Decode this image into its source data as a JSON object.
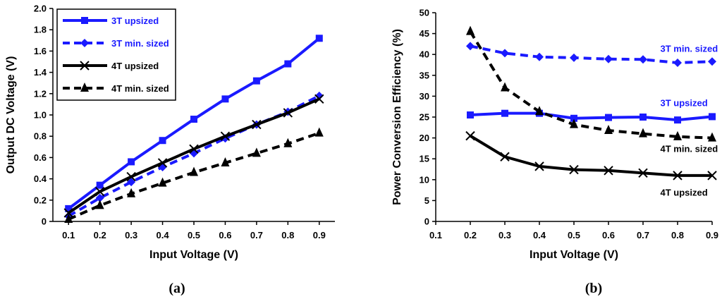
{
  "chart_data": [
    {
      "type": "line",
      "id": "a",
      "subtitle": "(a)",
      "xlabel": "Input Voltage (V)",
      "ylabel": "Output DC  Voltage (V)",
      "xticks": [
        "0.1",
        "0.2",
        "0.3",
        "0.4",
        "0.5",
        "0.6",
        "0.7",
        "0.8",
        "0.9"
      ],
      "yticks": [
        "0",
        "0.2",
        "0.4",
        "0.6",
        "0.8",
        "1.0",
        "1.2",
        "1.4",
        "1.6",
        "1.8",
        "2.0"
      ],
      "xlim": [
        0.05,
        0.95
      ],
      "ylim": [
        0,
        2.0
      ],
      "legend_position": "top-left",
      "x": [
        0.1,
        0.2,
        0.3,
        0.4,
        0.5,
        0.6,
        0.7,
        0.8,
        0.9
      ],
      "series": [
        {
          "name": "3T upsized",
          "color": "#1a1aff",
          "dash": false,
          "marker": "square",
          "values": [
            0.12,
            0.34,
            0.56,
            0.76,
            0.96,
            1.15,
            1.32,
            1.48,
            1.72
          ]
        },
        {
          "name": "3T min. sized",
          "color": "#1a1aff",
          "dash": true,
          "marker": "diamond",
          "values": [
            0.05,
            0.22,
            0.37,
            0.51,
            0.64,
            0.78,
            0.91,
            1.03,
            1.18
          ]
        },
        {
          "name": "4T upsized",
          "color": "#000000",
          "dash": false,
          "marker": "x",
          "values": [
            0.08,
            0.28,
            0.42,
            0.55,
            0.68,
            0.8,
            0.91,
            1.02,
            1.15
          ]
        },
        {
          "name": "4T min. sized",
          "color": "#000000",
          "dash": true,
          "marker": "triangle",
          "values": [
            0.02,
            0.15,
            0.26,
            0.36,
            0.46,
            0.55,
            0.64,
            0.73,
            0.83
          ]
        }
      ]
    },
    {
      "type": "line",
      "id": "b",
      "subtitle": "(b)",
      "xlabel": "Input Voltage (V)",
      "ylabel": "Power Conversion Efficiency (%)",
      "xticks": [
        "0.1",
        "0.2",
        "0.3",
        "0.4",
        "0.5",
        "0.6",
        "0.7",
        "0.8",
        "0.9"
      ],
      "yticks": [
        "0",
        "5",
        "10",
        "15",
        "20",
        "25",
        "30",
        "35",
        "40",
        "45",
        "50"
      ],
      "xlim": [
        0.1,
        0.9
      ],
      "ylim": [
        0,
        50
      ],
      "x": [
        0.2,
        0.3,
        0.4,
        0.5,
        0.6,
        0.7,
        0.8,
        0.9
      ],
      "series": [
        {
          "name": "3T min. sized",
          "color": "#1a1aff",
          "dash": true,
          "marker": "diamond",
          "values": [
            42.0,
            40.3,
            39.4,
            39.2,
            38.9,
            38.8,
            38.0,
            38.3
          ]
        },
        {
          "name": "3T upsized",
          "color": "#1a1aff",
          "dash": false,
          "marker": "square",
          "values": [
            25.5,
            25.9,
            25.9,
            24.7,
            24.9,
            25.0,
            24.3,
            25.1
          ]
        },
        {
          "name": "4T min. sized",
          "color": "#000000",
          "dash": true,
          "marker": "triangle",
          "values": [
            45.5,
            32.0,
            26.3,
            23.2,
            21.8,
            21.0,
            20.3,
            20.0
          ]
        },
        {
          "name": "4T upsized",
          "color": "#000000",
          "dash": false,
          "marker": "x",
          "values": [
            20.5,
            15.5,
            13.2,
            12.4,
            12.2,
            11.6,
            11.0,
            11.0
          ]
        }
      ],
      "annotations": [
        {
          "text": "3T min. sized",
          "color": "#1a1aff",
          "at": [
            0.75,
            41.5
          ]
        },
        {
          "text": "3T upsized",
          "color": "#1a1aff",
          "at": [
            0.75,
            28.5
          ]
        },
        {
          "text": "4T min. sized",
          "color": "#000000",
          "at": [
            0.75,
            17.5
          ]
        },
        {
          "text": "4T upsized",
          "color": "#000000",
          "at": [
            0.75,
            7.0
          ]
        }
      ]
    }
  ]
}
